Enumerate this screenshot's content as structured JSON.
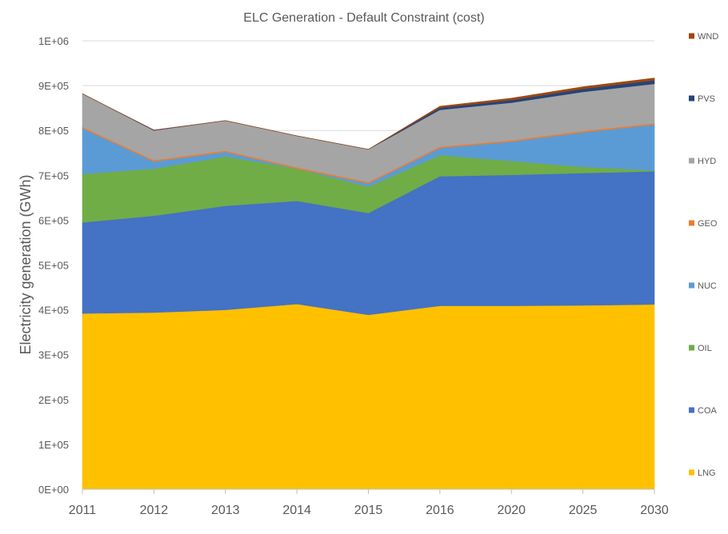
{
  "chart_data": {
    "type": "area",
    "stacked": true,
    "title": "ELC Generation - Default Constraint (cost)",
    "xlabel": "",
    "ylabel": "Electricity generation (GWh)",
    "categories": [
      "2011",
      "2012",
      "2013",
      "2014",
      "2015",
      "2016",
      "2020",
      "2025",
      "2030"
    ],
    "ylim": [
      0,
      1000000
    ],
    "yticks": [
      0,
      100000,
      200000,
      300000,
      400000,
      500000,
      600000,
      700000,
      800000,
      900000,
      1000000
    ],
    "ytick_labels": [
      "0E+00",
      "1E+05",
      "2E+05",
      "3E+05",
      "4E+05",
      "5E+05",
      "6E+05",
      "7E+05",
      "8E+05",
      "9E+05",
      "1E+06"
    ],
    "grid": true,
    "legend_position": "right",
    "series": [
      {
        "name": "LNG",
        "color": "#ffc000",
        "values": [
          392000,
          394000,
          400000,
          413000,
          389000,
          409000,
          409000,
          410000,
          412000
        ]
      },
      {
        "name": "COA",
        "color": "#4472c4",
        "values": [
          203000,
          216000,
          232000,
          230000,
          227000,
          289000,
          292000,
          295000,
          297000
        ]
      },
      {
        "name": "OIL",
        "color": "#70ad47",
        "values": [
          108000,
          105000,
          110000,
          72000,
          59000,
          47000,
          31000,
          14000,
          2000
        ]
      },
      {
        "name": "NUC",
        "color": "#5b9bd5",
        "values": [
          102000,
          16000,
          10000,
          0,
          7000,
          16000,
          43000,
          77000,
          102000
        ]
      },
      {
        "name": "GEO",
        "color": "#ed7d31",
        "values": [
          3000,
          3000,
          3000,
          3000,
          3000,
          3000,
          3000,
          3000,
          3000
        ]
      },
      {
        "name": "HYD",
        "color": "#a5a5a5",
        "values": [
          74000,
          66000,
          67000,
          70000,
          73000,
          82000,
          84000,
          87000,
          88000
        ]
      },
      {
        "name": "PVS",
        "color": "#264478",
        "values": [
          0,
          1000,
          0,
          0,
          0,
          5000,
          6000,
          7000,
          8000
        ]
      },
      {
        "name": "WND",
        "color": "#9e480e",
        "values": [
          0,
          0,
          0,
          0,
          0,
          3000,
          4000,
          4500,
          5000
        ]
      }
    ]
  }
}
